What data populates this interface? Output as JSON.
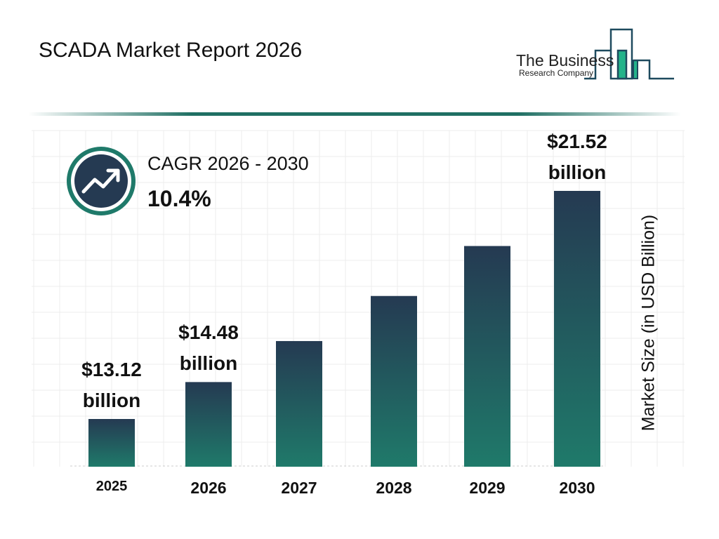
{
  "header": {
    "title": "SCADA Market Report 2026"
  },
  "logo": {
    "line1": "The Business",
    "line2": "Research Company"
  },
  "cagr": {
    "label": "CAGR 2026 - 2030",
    "value": "10.4%",
    "icon": "trend-up-arrow-icon"
  },
  "colors": {
    "bar_top": "#253a52",
    "bar_bottom": "#1f7a6a",
    "accent": "#1f7a6a",
    "icon_bg": "#253a52"
  },
  "chart_data": {
    "type": "bar",
    "title": "SCADA Market Report 2026",
    "categories": [
      "2025",
      "2026",
      "2027",
      "2028",
      "2029",
      "2030"
    ],
    "values": [
      13.12,
      14.48,
      15.99,
      17.65,
      19.49,
      21.52
    ],
    "data_labels": [
      {
        "index": 0,
        "value": "$13.12",
        "unit": "billion"
      },
      {
        "index": 1,
        "value": "$14.48",
        "unit": "billion"
      },
      {
        "index": 5,
        "value": "$21.52",
        "unit": "billion"
      }
    ],
    "xlabel": "",
    "ylabel": "Market Size (in USD Billion)",
    "grid": true,
    "legend": "none"
  }
}
